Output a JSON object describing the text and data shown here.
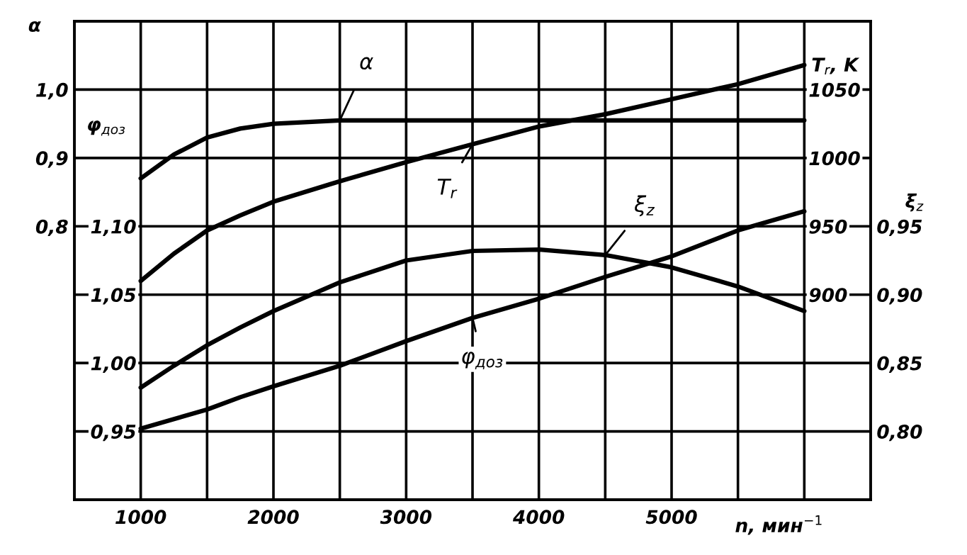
{
  "chart_data": [
    {
      "type": "line",
      "xlabel": "n, мин$^{−1}$",
      "ylabel": "α",
      "y2label": "T$_{r}$, K",
      "x": [
        1000,
        1250,
        1500,
        1750,
        2000,
        2500,
        3000,
        3500,
        4000,
        4500,
        5000,
        5500,
        6000
      ],
      "series": [
        {
          "name": "α",
          "color": "#000000",
          "axis": "y",
          "values": [
            0.87,
            0.905,
            0.93,
            0.943,
            0.95,
            0.955,
            0.955,
            0.955,
            0.955,
            0.955,
            0.955,
            0.955,
            0.955
          ]
        },
        {
          "name": "T$_{r}$",
          "color": "#000000",
          "axis": "y2",
          "values": [
            910,
            930,
            947,
            958,
            968,
            983,
            997,
            1010,
            1023,
            1032,
            1043,
            1054,
            1068
          ]
        }
      ],
      "xlim": [
        500,
        6500
      ],
      "xticks": [
        {
          "value": 500,
          "label": null
        },
        1000,
        {
          "value": 1500,
          "label": null
        },
        2000,
        {
          "value": 2500,
          "label": null
        },
        3000,
        {
          "value": 3500,
          "label": null
        },
        4000,
        {
          "value": 4500,
          "label": null
        },
        5000,
        {
          "value": 5500,
          "label": null
        },
        {
          "value": 6000,
          "label": null
        }
      ],
      "ylim": [
        0.4,
        1.1
      ],
      "yticks": [
        {
          "value": 0.4,
          "label": null
        },
        {
          "value": 0.5,
          "label": null
        },
        {
          "value": 0.6,
          "label": null
        },
        {
          "value": 0.7,
          "label": null
        },
        {
          "value": 0.8,
          "label": "0,8"
        },
        {
          "value": 0.9,
          "label": "0,9"
        },
        {
          "value": 1.0,
          "label": "1,0"
        }
      ],
      "y2lim": [
        750,
        1100
      ],
      "y2ticks": [
        900,
        950,
        1000,
        1050
      ],
      "grid": true,
      "marker": "none",
      "line_style": "solid"
    },
    {
      "type": "line",
      "ylabel": "φ$_{доз}$",
      "y2label": "ξ$_{z}$",
      "x": [
        1000,
        1250,
        1500,
        1750,
        2000,
        2500,
        3000,
        3500,
        4000,
        4500,
        5000,
        5500,
        6000
      ],
      "series": [
        {
          "name": "ξ$_{z}$",
          "color": "#000000",
          "axis": "y2",
          "values": [
            0.832,
            0.848,
            0.863,
            0.876,
            0.888,
            0.909,
            0.925,
            0.932,
            0.933,
            0.929,
            0.92,
            0.906,
            0.888
          ]
        },
        {
          "name": "φ$_{доз}$",
          "color": "#000000",
          "axis": "y",
          "values": [
            0.952,
            0.959,
            0.966,
            0.975,
            0.983,
            0.998,
            1.016,
            1.033,
            1.047,
            1.063,
            1.078,
            1.097,
            1.111
          ]
        }
      ],
      "xlim": [
        500,
        6500
      ],
      "ylim": [
        0.9,
        1.25
      ],
      "yticks": [
        {
          "value": 0.95,
          "label": "0,95"
        },
        {
          "value": 1.0,
          "label": "1,00"
        },
        {
          "value": 1.05,
          "label": "1,05"
        },
        {
          "value": 1.1,
          "label": "1,10"
        }
      ],
      "y2lim": [
        0.75,
        1.1
      ],
      "y2ticks": [
        {
          "value": 0.8,
          "label": "0,80"
        },
        {
          "value": 0.85,
          "label": "0,85"
        },
        {
          "value": 0.9,
          "label": "0,90"
        },
        {
          "value": 0.95,
          "label": "0,95"
        }
      ],
      "tick_labels": "y",
      "marker": "none",
      "line_style": "solid"
    }
  ]
}
